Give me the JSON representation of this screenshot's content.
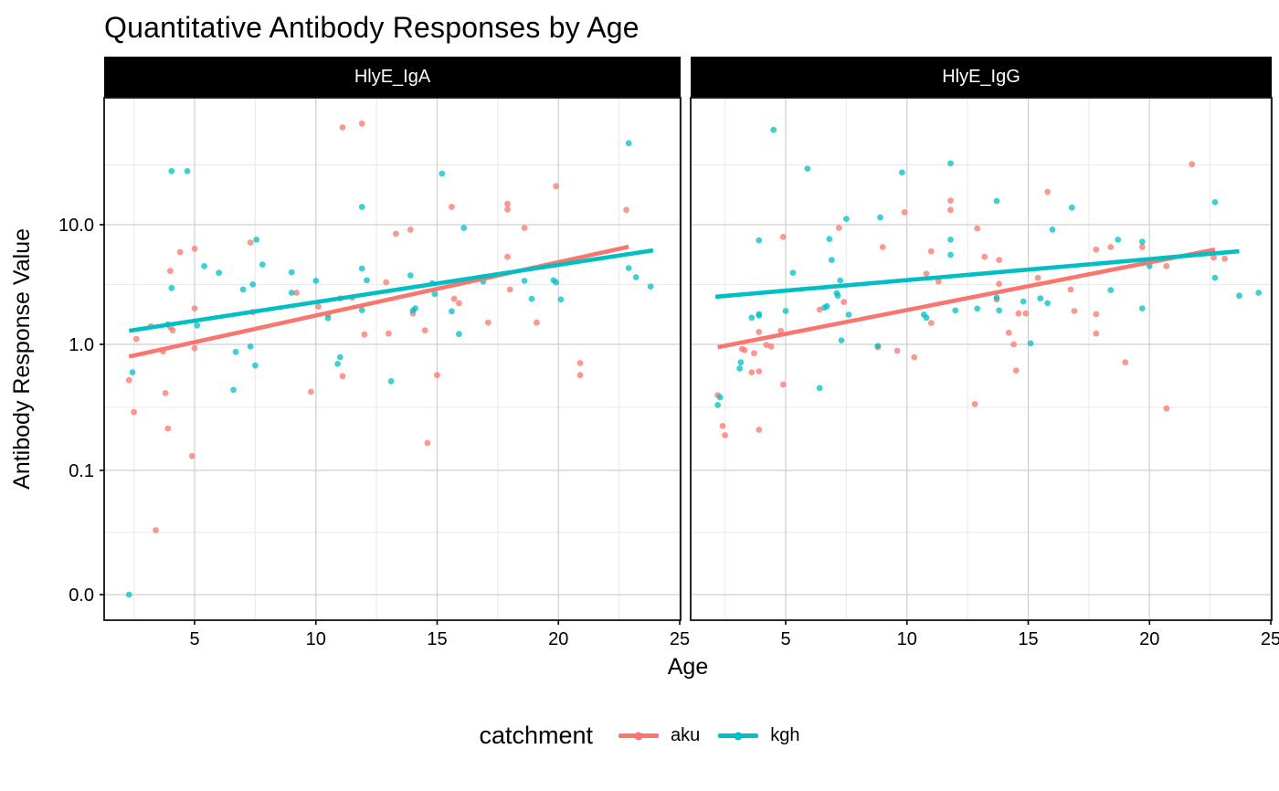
{
  "page": {
    "title": "Quantitative Antibody Responses by Age"
  },
  "legend": {
    "title": "catchment",
    "items": [
      {
        "label": "aku",
        "color": "#F8766D"
      },
      {
        "label": "kgh",
        "color": "#00BFC4"
      }
    ]
  },
  "chart_data": {
    "type": "scatter",
    "title": "Quantitative Antibody Responses by Age",
    "xlabel": "Age",
    "ylabel": "Antibody Response Value",
    "x_ticks": [
      5,
      10,
      15,
      20,
      25
    ],
    "x_minor_ticks": [
      2.5,
      7.5,
      12.5,
      17.5,
      22.5
    ],
    "xlim": [
      1.2,
      25.1
    ],
    "y_scale": "log10 with zero floor (pseudo-log)",
    "y_ticks": [
      {
        "label": "0.0",
        "value": 0
      },
      {
        "label": "0.1",
        "value": 0.1
      },
      {
        "label": "1.0",
        "value": 1
      },
      {
        "label": "10.0",
        "value": 10
      }
    ],
    "grid": true,
    "legend_position": "bottom",
    "point_opacity": 0.75,
    "facets": [
      {
        "label": "HlyE_IgA",
        "series": [
          {
            "name": "aku",
            "color": "#F8766D",
            "points": [
              [
                2.3,
                0.52
              ],
              [
                2.5,
                0.29
              ],
              [
                2.6,
                1.11
              ],
              [
                3.2,
                1.42
              ],
              [
                3.4,
                0.033
              ],
              [
                3.7,
                0.88
              ],
              [
                3.8,
                0.41
              ],
              [
                3.9,
                0.215
              ],
              [
                4.0,
                4.1
              ],
              [
                4.0,
                1.39
              ],
              [
                4.1,
                1.31
              ],
              [
                4.4,
                5.9
              ],
              [
                4.9,
                0.13
              ],
              [
                5.0,
                6.3
              ],
              [
                5.0,
                2.0
              ],
              [
                5.0,
                0.93
              ],
              [
                7.3,
                7.1
              ],
              [
                7.4,
                1.86
              ],
              [
                9.2,
                2.7
              ],
              [
                9.8,
                0.42
              ],
              [
                10.1,
                2.07
              ],
              [
                10.5,
                1.78
              ],
              [
                11.0,
                2.42
              ],
              [
                11.1,
                65
              ],
              [
                11.1,
                0.56
              ],
              [
                11.5,
                2.45
              ],
              [
                11.9,
                70
              ],
              [
                12.0,
                1.21
              ],
              [
                12.9,
                3.3
              ],
              [
                13.0,
                1.23
              ],
              [
                13.3,
                8.4
              ],
              [
                13.9,
                9.1
              ],
              [
                14.0,
                1.81
              ],
              [
                14.5,
                1.31
              ],
              [
                14.6,
                0.165
              ],
              [
                15.0,
                0.57
              ],
              [
                15.6,
                14.1
              ],
              [
                15.7,
                2.4
              ],
              [
                15.9,
                2.21
              ],
              [
                17.1,
                1.52
              ],
              [
                17.9,
                14.9
              ],
              [
                17.9,
                13.4
              ],
              [
                17.9,
                5.4
              ],
              [
                18.0,
                2.87
              ],
              [
                18.6,
                9.4
              ],
              [
                19.1,
                1.52
              ],
              [
                19.9,
                21
              ],
              [
                20.9,
                0.71
              ],
              [
                20.9,
                0.57
              ],
              [
                22.8,
                13.3
              ]
            ],
            "trend": {
              "x": [
                2.3,
                22.9
              ],
              "y": [
                0.8,
                6.55
              ]
            }
          },
          {
            "name": "kgh",
            "color": "#00BFC4",
            "points": [
              [
                2.3,
                0.0
              ],
              [
                2.44,
                0.6
              ],
              [
                3.9,
                1.47
              ],
              [
                4.05,
                28
              ],
              [
                4.05,
                2.96
              ],
              [
                4.7,
                28
              ],
              [
                5.1,
                1.44
              ],
              [
                5.4,
                4.5
              ],
              [
                6.0,
                3.96
              ],
              [
                6.6,
                0.435
              ],
              [
                6.7,
                0.87
              ],
              [
                7.0,
                2.87
              ],
              [
                7.3,
                0.96
              ],
              [
                7.4,
                3.17
              ],
              [
                7.5,
                0.68
              ],
              [
                7.55,
                7.5
              ],
              [
                7.8,
                4.65
              ],
              [
                9.0,
                4.0
              ],
              [
                9.0,
                2.7
              ],
              [
                10.0,
                3.4
              ],
              [
                10.5,
                1.66
              ],
              [
                10.9,
                0.7
              ],
              [
                11.0,
                0.79
              ],
              [
                11.9,
                14.1
              ],
              [
                11.9,
                4.3
              ],
              [
                11.9,
                1.93
              ],
              [
                12.1,
                3.43
              ],
              [
                13.1,
                0.51
              ],
              [
                13.9,
                3.77
              ],
              [
                14.0,
                1.92
              ],
              [
                14.1,
                2.0
              ],
              [
                14.8,
                3.24
              ],
              [
                14.9,
                2.64
              ],
              [
                15.2,
                26.7
              ],
              [
                15.6,
                1.89
              ],
              [
                15.9,
                1.22
              ],
              [
                16.1,
                9.4
              ],
              [
                16.9,
                3.35
              ],
              [
                18.6,
                3.39
              ],
              [
                18.9,
                2.4
              ],
              [
                19.8,
                3.43
              ],
              [
                19.9,
                3.3
              ],
              [
                20.1,
                2.37
              ],
              [
                22.9,
                48
              ],
              [
                22.9,
                4.34
              ],
              [
                23.2,
                3.64
              ],
              [
                23.8,
                3.05
              ]
            ],
            "trend": {
              "x": [
                2.3,
                23.9
              ],
              "y": [
                1.3,
                6.1
              ]
            }
          }
        ]
      },
      {
        "label": "HlyE_IgG",
        "series": [
          {
            "name": "aku",
            "color": "#F8766D",
            "points": [
              [
                2.2,
                0.395
              ],
              [
                2.4,
                0.225
              ],
              [
                2.5,
                0.19
              ],
              [
                3.2,
                0.92
              ],
              [
                3.3,
                0.9
              ],
              [
                3.6,
                0.6
              ],
              [
                3.7,
                0.85
              ],
              [
                3.9,
                1.27
              ],
              [
                3.9,
                0.61
              ],
              [
                3.9,
                0.21
              ],
              [
                4.2,
                0.99
              ],
              [
                4.4,
                0.96
              ],
              [
                4.8,
                1.3
              ],
              [
                4.9,
                7.9
              ],
              [
                4.9,
                0.48
              ],
              [
                6.4,
                1.95
              ],
              [
                7.2,
                9.4
              ],
              [
                7.4,
                2.26
              ],
              [
                8.8,
                0.95
              ],
              [
                9.0,
                6.5
              ],
              [
                9.6,
                0.89
              ],
              [
                9.9,
                12.7
              ],
              [
                10.3,
                0.79
              ],
              [
                10.8,
                3.9
              ],
              [
                11.0,
                6.0
              ],
              [
                11.0,
                1.51
              ],
              [
                11.3,
                3.35
              ],
              [
                11.8,
                15.9
              ],
              [
                11.8,
                13.3
              ],
              [
                12.8,
                0.335
              ],
              [
                12.9,
                9.3
              ],
              [
                13.2,
                5.4
              ],
              [
                13.7,
                2.37
              ],
              [
                13.8,
                5.07
              ],
              [
                13.8,
                3.2
              ],
              [
                14.2,
                1.25
              ],
              [
                14.4,
                1.0
              ],
              [
                14.5,
                0.62
              ],
              [
                14.6,
                1.81
              ],
              [
                14.9,
                1.81
              ],
              [
                15.4,
                3.6
              ],
              [
                15.8,
                18.8
              ],
              [
                16.75,
                2.87
              ],
              [
                16.9,
                1.9
              ],
              [
                17.8,
                6.2
              ],
              [
                17.8,
                1.79
              ],
              [
                17.8,
                1.23
              ],
              [
                18.4,
                6.5
              ],
              [
                19.0,
                0.72
              ],
              [
                19.7,
                6.5
              ],
              [
                20.7,
                4.5
              ],
              [
                20.7,
                0.31
              ],
              [
                21.75,
                32
              ],
              [
                22.65,
                5.3
              ],
              [
                23.1,
                5.2
              ]
            ],
            "trend": {
              "x": [
                2.2,
                22.7
              ],
              "y": [
                0.95,
                6.2
              ]
            }
          },
          {
            "name": "kgh",
            "color": "#00BFC4",
            "points": [
              [
                2.2,
                0.33
              ],
              [
                2.3,
                0.38
              ],
              [
                3.1,
                0.645
              ],
              [
                3.15,
                0.72
              ],
              [
                3.6,
                1.67
              ],
              [
                3.9,
                7.4
              ],
              [
                3.9,
                1.74
              ],
              [
                3.9,
                1.79
              ],
              [
                4.5,
                62
              ],
              [
                5.0,
                1.9
              ],
              [
                5.3,
                3.97
              ],
              [
                5.9,
                29.4
              ],
              [
                6.4,
                0.45
              ],
              [
                6.6,
                2.03
              ],
              [
                6.7,
                2.08
              ],
              [
                6.8,
                7.6
              ],
              [
                6.9,
                5.07
              ],
              [
                7.1,
                2.68
              ],
              [
                7.15,
                2.55
              ],
              [
                7.25,
                3.42
              ],
              [
                7.3,
                1.08
              ],
              [
                7.5,
                11.2
              ],
              [
                7.6,
                1.77
              ],
              [
                8.8,
                0.97
              ],
              [
                8.9,
                11.5
              ],
              [
                9.8,
                27.3
              ],
              [
                10.7,
                1.77
              ],
              [
                10.8,
                1.67
              ],
              [
                11.8,
                32.5
              ],
              [
                11.8,
                7.5
              ],
              [
                11.8,
                5.6
              ],
              [
                12.0,
                1.92
              ],
              [
                12.9,
                1.99
              ],
              [
                13.7,
                15.8
              ],
              [
                13.7,
                2.46
              ],
              [
                13.8,
                1.92
              ],
              [
                14.8,
                2.28
              ],
              [
                15.1,
                1.02
              ],
              [
                15.5,
                2.42
              ],
              [
                15.8,
                2.21
              ],
              [
                16.0,
                9.1
              ],
              [
                16.8,
                13.9
              ],
              [
                18.4,
                2.84
              ],
              [
                18.7,
                7.5
              ],
              [
                19.7,
                7.2
              ],
              [
                19.7,
                2.0
              ],
              [
                20.0,
                4.5
              ],
              [
                22.7,
                15.4
              ],
              [
                22.7,
                3.6
              ],
              [
                23.7,
                2.55
              ],
              [
                24.5,
                2.7
              ]
            ],
            "trend": {
              "x": [
                2.1,
                23.7
              ],
              "y": [
                2.5,
                6.0
              ]
            }
          }
        ]
      }
    ]
  }
}
